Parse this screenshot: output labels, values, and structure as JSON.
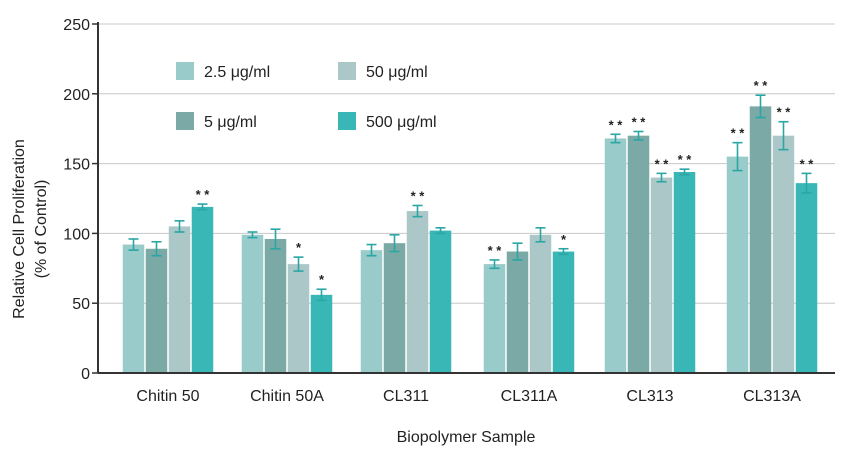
{
  "chart_data": {
    "type": "bar",
    "title": "",
    "xlabel": "Biopolymer Sample",
    "ylabel_line1": "Relative Cell Proliferation",
    "ylabel_line2": "(% of Control)",
    "ylim": [
      0,
      250
    ],
    "yticks": [
      0,
      50,
      100,
      150,
      200,
      250
    ],
    "grid": true,
    "legend_placement": "top-left",
    "categories": [
      "Chitin 50",
      "Chitin 50A",
      "CL311",
      "CL311A",
      "CL313",
      "CL313A"
    ],
    "series": [
      {
        "name": "2.5 μg/ml",
        "color": "#98cbc9",
        "values": [
          92,
          99,
          88,
          78,
          168,
          155
        ],
        "errors": [
          4,
          2,
          4,
          3,
          3,
          10
        ],
        "significance": [
          "",
          "",
          "",
          "**",
          "**",
          "**"
        ]
      },
      {
        "name": "5 μg/ml",
        "color": "#7aa9a6",
        "values": [
          89,
          96,
          93,
          87,
          170,
          191
        ],
        "errors": [
          5,
          7,
          6,
          6,
          3,
          8
        ],
        "significance": [
          "",
          "",
          "",
          "",
          "**",
          "**"
        ]
      },
      {
        "name": "50 μg/ml",
        "color": "#abc7c8",
        "values": [
          105,
          78,
          116,
          99,
          140,
          170
        ],
        "errors": [
          4,
          5,
          4,
          5,
          3,
          10
        ],
        "significance": [
          "",
          "*",
          "**",
          "",
          "**",
          "**"
        ]
      },
      {
        "name": "500 μg/ml",
        "color": "#38b7b6",
        "values": [
          119,
          56,
          102,
          87,
          144,
          136
        ],
        "errors": [
          2,
          4,
          2,
          2,
          2,
          7
        ],
        "significance": [
          "**",
          "*",
          "",
          "*",
          "**",
          "**"
        ]
      }
    ]
  },
  "colors": {
    "grid": "#c8c8c8",
    "axis": "#333333",
    "error_bar": "#2aa6a4"
  }
}
